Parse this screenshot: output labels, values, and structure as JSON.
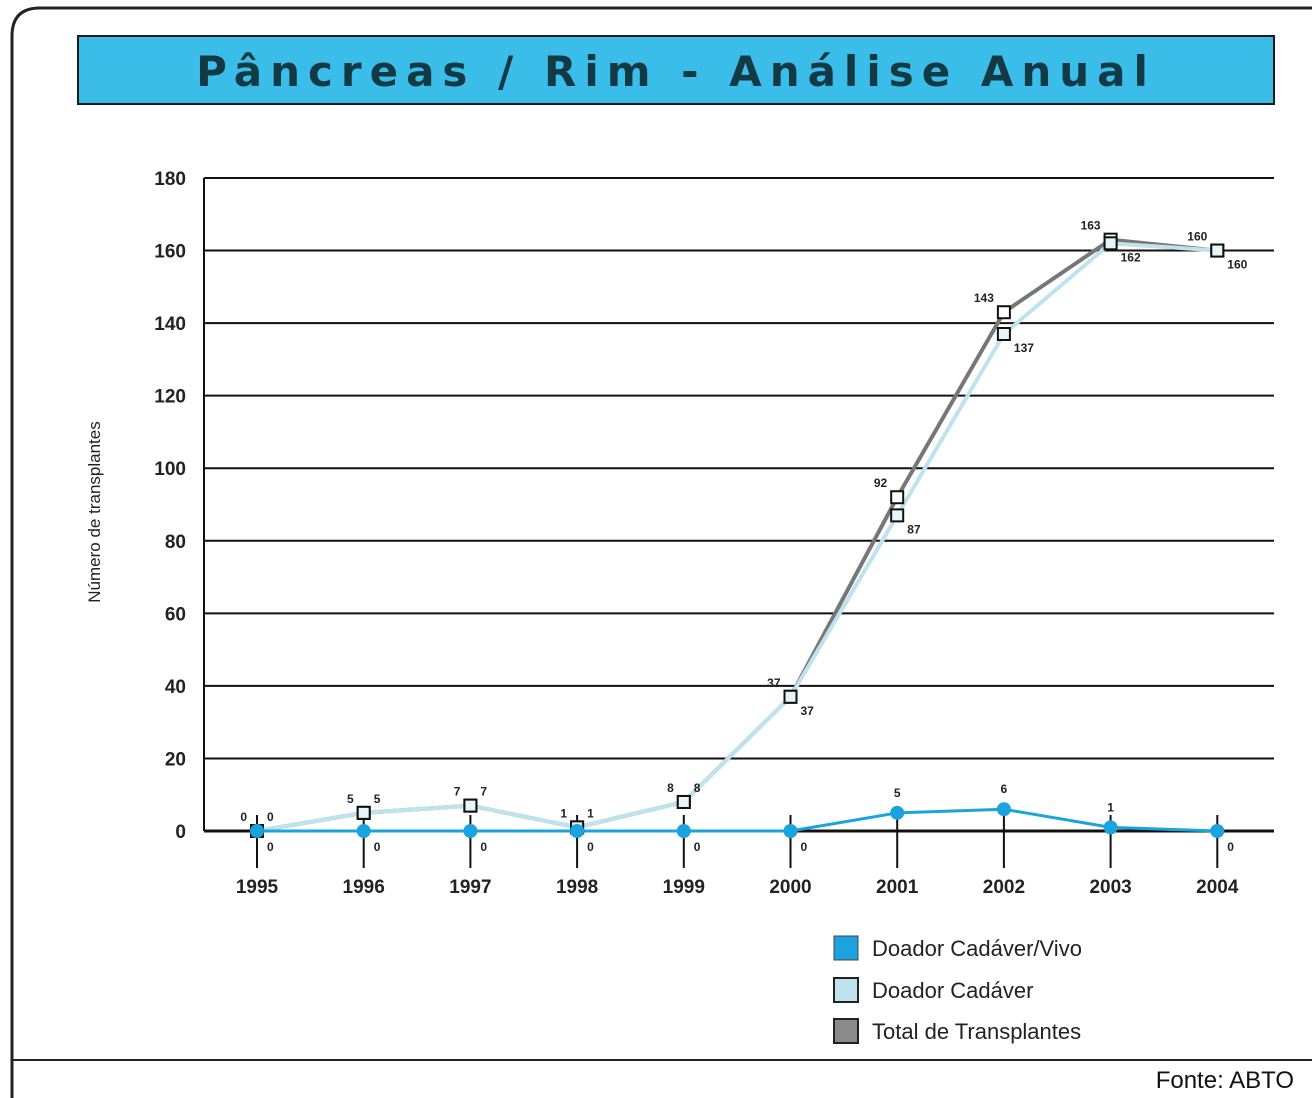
{
  "title": "Pâncreas / Rim - Análise Anual",
  "source": "Fonte: ABTO",
  "colors": {
    "title_bar": "#3bbdea",
    "cadaver_vivo": "#1aa3dc",
    "cadaver": "#bfe3ee",
    "total": "#555555",
    "grid": "#111111"
  },
  "chart_data": {
    "type": "line",
    "title": "Pâncreas / Rim - Análise Anual",
    "ylabel": "Número de transplantes",
    "xlabel": "",
    "ylim": [
      0,
      180
    ],
    "yticks": [
      0,
      20,
      40,
      60,
      80,
      100,
      120,
      140,
      160,
      180
    ],
    "categories": [
      "1995",
      "1996",
      "1997",
      "1998",
      "1999",
      "2000",
      "2001",
      "2002",
      "2003",
      "2004"
    ],
    "grid": true,
    "legend_position": "bottom-right",
    "series": [
      {
        "name": "Doador Cadáver/Vivo",
        "values": [
          0,
          0,
          0,
          0,
          0,
          0,
          5,
          6,
          1,
          0
        ]
      },
      {
        "name": "Doador Cadáver",
        "values": [
          0,
          5,
          7,
          1,
          8,
          37,
          87,
          137,
          162,
          160
        ]
      },
      {
        "name": "Total de Transplantes",
        "values": [
          0,
          5,
          7,
          1,
          8,
          37,
          92,
          143,
          163,
          160
        ]
      }
    ]
  }
}
